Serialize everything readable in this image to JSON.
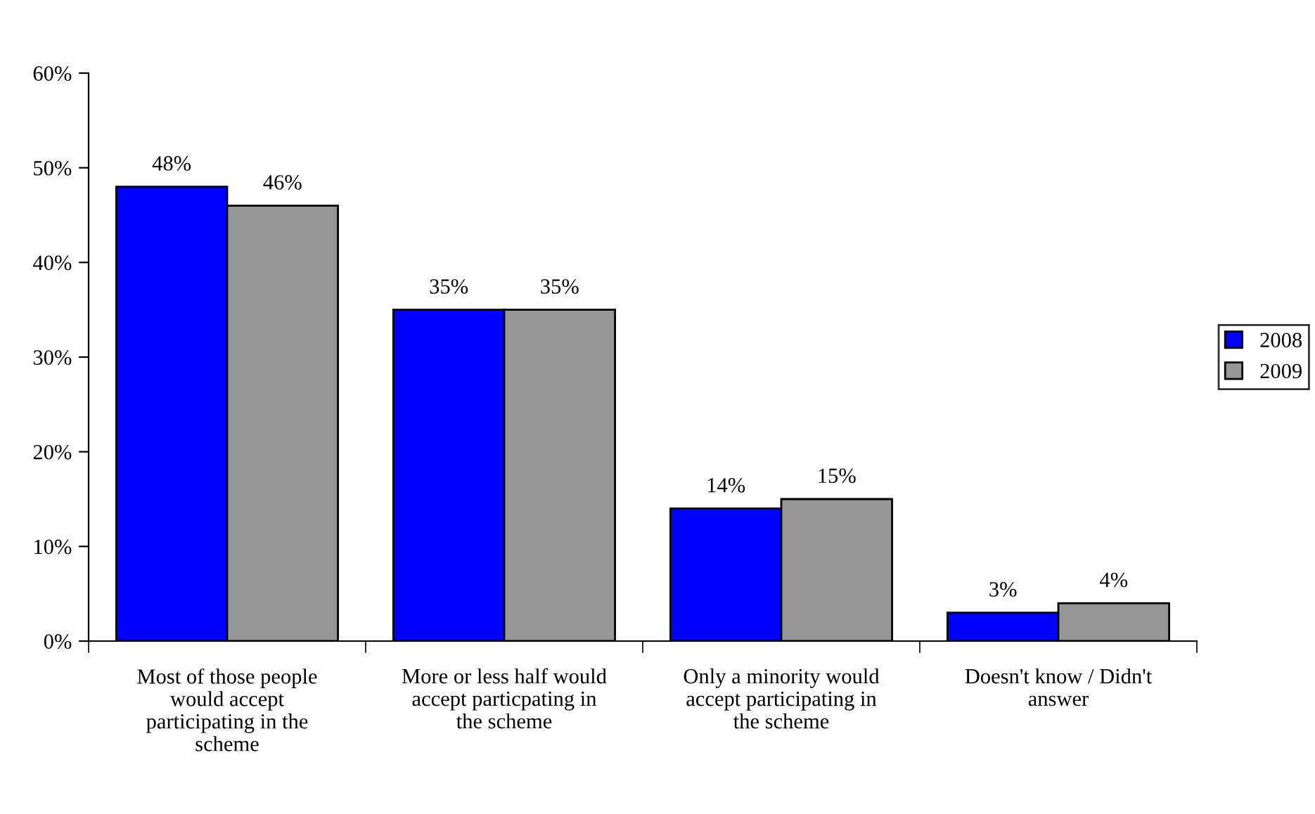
{
  "chart_data": {
    "type": "bar",
    "categories": [
      "Most of those people\nwould accept\nparticipating in the\nscheme",
      "More or less half would\naccept particpating in\nthe scheme",
      "Only a minority would\naccept participating in\nthe scheme",
      "Doesn't know / Didn't\nanswer"
    ],
    "series": [
      {
        "name": "2008",
        "color": "#0000ff",
        "values": [
          48,
          35,
          14,
          3
        ],
        "value_labels": [
          "48%",
          "35%",
          "14%",
          "3%"
        ]
      },
      {
        "name": "2009",
        "color": "#969696",
        "values": [
          46,
          35,
          15,
          4
        ],
        "value_labels": [
          "46%",
          "35%",
          "15%",
          "4%"
        ]
      }
    ],
    "ylim": [
      0,
      60
    ],
    "yticks": [
      {
        "value": 0,
        "label": "0%"
      },
      {
        "value": 10,
        "label": "10%"
      },
      {
        "value": 20,
        "label": "20%"
      },
      {
        "value": 30,
        "label": "30%"
      },
      {
        "value": 40,
        "label": "40%"
      },
      {
        "value": 50,
        "label": "50%"
      },
      {
        "value": 60,
        "label": "60%"
      }
    ],
    "grid": false,
    "legend": "right"
  }
}
